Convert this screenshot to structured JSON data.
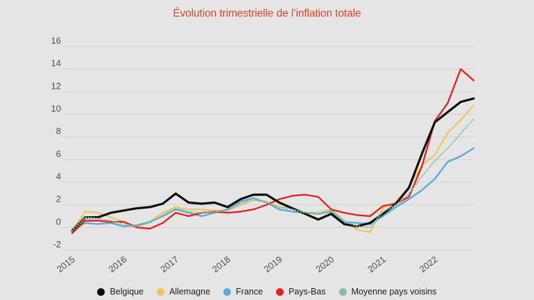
{
  "page": {
    "background": "#e5e5e5"
  },
  "title": {
    "text": "Évolution trimestrielle de l’inflation totale",
    "color": "#d8452e"
  },
  "chart_data": {
    "type": "line",
    "title": "Évolution trimestrielle de l’inflation totale",
    "x_unit": "quarter",
    "x_range": [
      "2015-Q1",
      "2022-Q4"
    ],
    "x_tick_labels": [
      "2015",
      "2016",
      "2017",
      "2018",
      "2019",
      "2020",
      "2021",
      "2022"
    ],
    "y_ticks": [
      16,
      14,
      12,
      10,
      8,
      6,
      4,
      2,
      0,
      -2
    ],
    "ylim": [
      -2,
      16
    ],
    "grid": true,
    "legend_position": "bottom",
    "background_color": "#e5e5e5",
    "gridline_color": "#d0d0d0",
    "tick_label_color": "#4d4d4d",
    "series": [
      {
        "name": "Belgique",
        "color": "#0d0d0d",
        "style": "solid",
        "values": [
          -0.3,
          0.9,
          0.9,
          1.3,
          1.5,
          1.7,
          1.8,
          2.1,
          3.0,
          2.2,
          2.1,
          2.2,
          1.8,
          2.5,
          2.9,
          2.9,
          2.2,
          1.7,
          1.2,
          0.7,
          1.2,
          0.3,
          0.1,
          0.4,
          1.2,
          2.1,
          3.5,
          6.5,
          9.3,
          10.2,
          11.1,
          11.4
        ]
      },
      {
        "name": "Allemagne",
        "color": "#eec763",
        "style": "solid",
        "values": [
          -0.3,
          1.4,
          1.3,
          0.9,
          0.5,
          0.1,
          0.5,
          1.3,
          1.8,
          1.6,
          1.6,
          1.5,
          1.5,
          2.0,
          2.4,
          2.3,
          1.8,
          1.7,
          1.3,
          1.3,
          1.6,
          0.6,
          -0.2,
          -0.4,
          1.7,
          2.3,
          3.6,
          5.5,
          6.4,
          8.4,
          9.5,
          10.8
        ]
      },
      {
        "name": "France",
        "color": "#5ca9da",
        "style": "solid",
        "values": [
          -0.2,
          0.4,
          0.3,
          0.4,
          0.1,
          0.2,
          0.5,
          1.0,
          1.6,
          1.3,
          1.0,
          1.3,
          1.6,
          2.3,
          2.6,
          2.2,
          1.6,
          1.4,
          1.3,
          1.2,
          1.4,
          0.5,
          0.4,
          0.3,
          1.0,
          1.8,
          2.5,
          3.3,
          4.3,
          5.8,
          6.3,
          7.0
        ]
      },
      {
        "name": "Pays-Bas",
        "color": "#e62220",
        "style": "solid",
        "values": [
          -0.5,
          0.6,
          0.6,
          0.5,
          0.5,
          0.0,
          -0.1,
          0.4,
          1.3,
          1.0,
          1.3,
          1.4,
          1.3,
          1.4,
          1.6,
          2.0,
          2.5,
          2.8,
          2.9,
          2.7,
          1.6,
          1.3,
          1.1,
          1.0,
          1.9,
          2.1,
          2.7,
          5.4,
          9.4,
          11.0,
          14.0,
          13.0
        ]
      },
      {
        "name": "Moyenne pays voisins",
        "color": "#86c2a2",
        "style": "dotted",
        "values": [
          -0.3,
          0.9,
          0.8,
          0.6,
          0.3,
          0.1,
          0.4,
          1.1,
          1.7,
          1.4,
          1.3,
          1.4,
          1.5,
          2.1,
          2.5,
          2.2,
          1.8,
          1.6,
          1.3,
          1.2,
          1.5,
          0.6,
          0.1,
          0.0,
          1.4,
          2.0,
          3.0,
          4.5,
          5.9,
          7.0,
          8.3,
          9.6
        ]
      }
    ]
  }
}
